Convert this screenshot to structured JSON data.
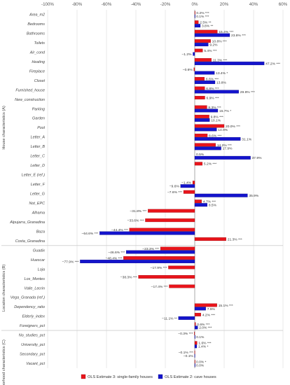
{
  "chart_data": {
    "type": "bar",
    "orientation": "horizontal",
    "xlim": [
      -100,
      60
    ],
    "x_ticks": [
      -100,
      -80,
      -60,
      -40,
      -20,
      0,
      20,
      40,
      60
    ],
    "x_tick_labels": [
      "-100%",
      "-80%",
      "-60%",
      "-40%",
      "-20%",
      "0%",
      "20%",
      "40%",
      "60%"
    ],
    "grid": true,
    "legend_position": "bottom",
    "series": [
      {
        "name": "OLS Estimate 3: single-family houses",
        "color": "#e8141b",
        "edge": "#8a0a0e"
      },
      {
        "name": "OLS Estimate 2: cave houses",
        "color": "#1414cc",
        "edge": "#050577"
      }
    ],
    "groups": [
      {
        "label": "House characteristics (A)",
        "start": 0,
        "end": 24
      },
      {
        "label": "Location characteristics (B)",
        "start": 25,
        "end": 33
      },
      {
        "label": "Neighborhood characteristics (C)",
        "start": 34,
        "end": 41
      }
    ],
    "categories": [
      {
        "name": "Area_m2",
        "red": 0.2,
        "red_label": "0.2% ***",
        "blue": 0.1,
        "blue_label": "0.1% ***"
      },
      {
        "name": "Bedrooms",
        "red": 2.5,
        "red_label": "2.5% **",
        "blue": 3.8,
        "blue_label": "3.8% **"
      },
      {
        "name": "Bathrooms",
        "red": 15.4,
        "red_label": "15.4% ***",
        "blue": 23.8,
        "blue_label": "23.8% ***"
      },
      {
        "name": "Toilets",
        "red": 10.8,
        "red_label": "10.8% ***",
        "blue": 9.2,
        "blue_label": "9.2%"
      },
      {
        "name": "Air_cond",
        "red": 5.4,
        "red_label": "5.4% ***",
        "blue": -1.2,
        "blue_label": "−1.2%"
      },
      {
        "name": "Heating",
        "red": 11.3,
        "red_label": "11.3% ***",
        "blue": 47.2,
        "blue_label": "47.2% ***"
      },
      {
        "name": "Fireplace",
        "red": -0.6,
        "red_label": "−0.6%",
        "blue": 13.4,
        "blue_label": "13.4% *"
      },
      {
        "name": "Closet",
        "red": 6.6,
        "red_label": "6.6% ***",
        "blue": 13.8,
        "blue_label": "13.8%"
      },
      {
        "name": "Furnished_house",
        "red": 6.8,
        "red_label": "6.8% ***",
        "blue": 29.9,
        "blue_label": "29.9% ***"
      },
      {
        "name": "New_construction",
        "red": 6.9,
        "red_label": "6.9% ***",
        "blue": null,
        "blue_label": ""
      },
      {
        "name": "Parking",
        "red": 8.3,
        "red_label": "8.3% ***",
        "blue": 15.7,
        "blue_label": "15.7% *"
      },
      {
        "name": "Garden",
        "red": 9.8,
        "red_label": "9.8% ***",
        "blue": 10.1,
        "blue_label": "10.1%"
      },
      {
        "name": "Pool",
        "red": 20.0,
        "red_label": "20.0% ***",
        "blue": 14.9,
        "blue_label": "14.9%"
      },
      {
        "name": "Letter_A",
        "red": 8.6,
        "red_label": "8.6% ***",
        "blue": 31.1,
        "blue_label": "31.1%"
      },
      {
        "name": "Letter_B",
        "red": 14.2,
        "red_label": "14.2% ***",
        "blue": 17.9,
        "blue_label": "17.9%"
      },
      {
        "name": "Letter_C",
        "red": null,
        "red_label": "",
        "blue": 37.9,
        "blue_label": "37.9%",
        "extra_label": "0.5%"
      },
      {
        "name": "Letter_D",
        "red": 5.2,
        "red_label": "5.2% ***",
        "blue": null,
        "blue_label": ""
      },
      {
        "name": "Letter_E (ref.)",
        "red": null,
        "red_label": "",
        "blue": null,
        "blue_label": ""
      },
      {
        "name": "Letter_F",
        "red": -1.4,
        "red_label": "−1.4%",
        "blue": -9.6,
        "blue_label": "−9.6%"
      },
      {
        "name": "Letter_G",
        "red": -7.6,
        "red_label": "−7.6% ***",
        "blue": 35.9,
        "blue_label": "35.9%"
      },
      {
        "name": "Not_EPC",
        "red": 4.7,
        "red_label": "4.7% ***",
        "blue": 8.5,
        "blue_label": "8.5%"
      },
      {
        "name": "Alhama",
        "red": -31.8,
        "red_label": "−31.8% ***",
        "blue": null,
        "blue_label": ""
      },
      {
        "name": "Alpujarra_Granadina",
        "red": -33.6,
        "red_label": "−33.6% ***",
        "blue": null,
        "blue_label": ""
      },
      {
        "name": "Baza",
        "red": -44.4,
        "red_label": "−44.4% ***",
        "blue": -64.6,
        "blue_label": "−64.6% ***"
      },
      {
        "name": "Costa_Granadina",
        "red": 21.3,
        "red_label": "21.3% ***",
        "blue": null,
        "blue_label": ""
      },
      {
        "name": "Guadix",
        "red": -23.3,
        "red_label": "−23.3% ***",
        "blue": -46.6,
        "blue_label": "−46.6% ***"
      },
      {
        "name": "Huescar",
        "red": -48.4,
        "red_label": "−48.4% ***",
        "blue": -77.9,
        "blue_label": "−77.9% ***"
      },
      {
        "name": "Loja",
        "red": -17.9,
        "red_label": "−17.9% ***",
        "blue": null,
        "blue_label": ""
      },
      {
        "name": "Los_Montes",
        "red": -38.3,
        "red_label": "−38.3% ***",
        "blue": null,
        "blue_label": ""
      },
      {
        "name": "Valle_Lecrin",
        "red": -17.4,
        "red_label": "−17.4% ***",
        "blue": null,
        "blue_label": ""
      },
      {
        "name": "Vega_Granada (ref.)",
        "red": null,
        "red_label": "",
        "blue": null,
        "blue_label": ""
      },
      {
        "name": "Dependency_ratio",
        "red": 15.1,
        "red_label": "15.1% ***",
        "blue": 7.5,
        "blue_label": "7.5%"
      },
      {
        "name": "Elderly_index",
        "red": 4.2,
        "red_label": "4.2% ***",
        "blue": -11.1,
        "blue_label": "−11.1% **"
      },
      {
        "name": "Foreigners_pct",
        "red": 0.6,
        "red_label": "0.6% ***",
        "blue": 2.0,
        "blue_label": "2.0% ***"
      },
      {
        "name": "No_studies_pct",
        "red": -0.3,
        "red_label": "−0.3% ***",
        "blue": 0.1,
        "blue_label": "0.1%"
      },
      {
        "name": "University_pct",
        "red": 1.6,
        "red_label": "1.6% ***",
        "blue": 1.4,
        "blue_label": "1.4% *"
      },
      {
        "name": "Secondary_pct",
        "red": -0.1,
        "red_label": "−0.1% ***",
        "blue": -0.1,
        "blue_label": "−0.1%"
      },
      {
        "name": "Vacant_pct",
        "red": 0.0,
        "red_label": "0.0% *",
        "blue": 0.0,
        "blue_label": "0.0%"
      }
    ]
  }
}
